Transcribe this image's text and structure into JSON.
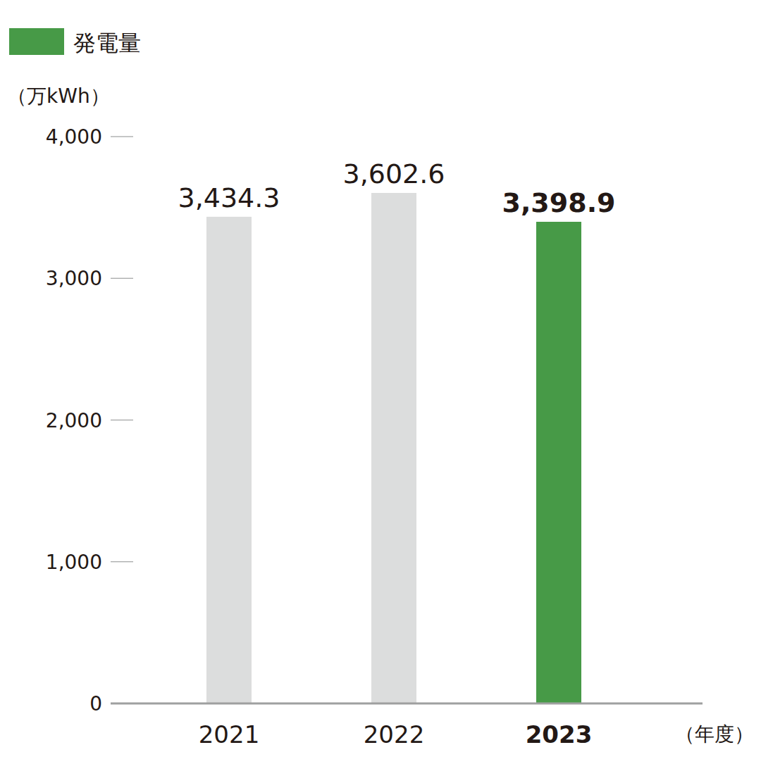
{
  "chart_data": {
    "type": "bar",
    "y_label": "（万kWh）",
    "x_label": "（年度）",
    "categories": [
      "2021",
      "2022",
      "2023"
    ],
    "series": [
      {
        "name": "発電量",
        "color": "#479a47",
        "values": [
          3434.3,
          3602.6,
          3398.9
        ]
      }
    ],
    "value_labels": [
      "3,434.3",
      "3,602.6",
      "3,398.9"
    ],
    "colors": [
      "#dcdddd",
      "#dcdddd",
      "#479a47"
    ],
    "ylim": [
      0,
      4000
    ],
    "yticks": [
      0,
      {
        "value": 1000,
        "label": "1,000"
      },
      {
        "value": 2000,
        "label": "2,000"
      },
      {
        "value": 3000,
        "label": "3,000"
      },
      {
        "value": 4000,
        "label": "4,000"
      }
    ],
    "data_labels": true,
    "legend": "top-left"
  }
}
